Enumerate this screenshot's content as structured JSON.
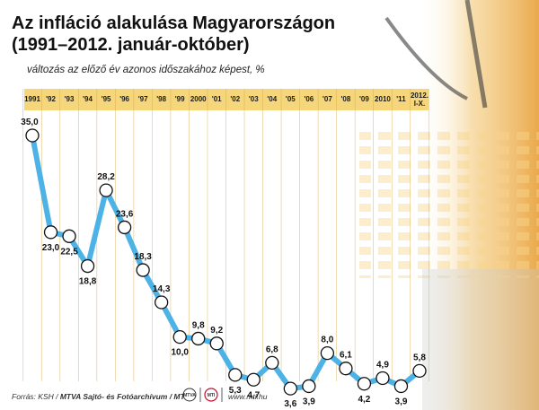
{
  "chart_data": {
    "type": "line",
    "title": [
      "Az infláció alakulása Magyarországon",
      "(1991–2012. január-október)"
    ],
    "subtitle": "változás az előző év azonos időszakához képest, %",
    "x_ticks": [
      "1991",
      "'92",
      "'93",
      "'94",
      "'95",
      "'96",
      "'97",
      "'98",
      "'99",
      "2000",
      "'01",
      "'02",
      "'03",
      "'04",
      "'05",
      "'06",
      "'07",
      "'08",
      "'09",
      "2010",
      "'11",
      "2012.\nI-X."
    ],
    "values": [
      35.0,
      23.0,
      22.5,
      18.8,
      28.2,
      23.6,
      18.3,
      14.3,
      10.0,
      9.8,
      9.2,
      5.3,
      4.7,
      6.8,
      3.6,
      3.9,
      8.0,
      6.1,
      4.2,
      4.9,
      3.9,
      5.8
    ],
    "value_labels": [
      "35,0",
      "23,0",
      "22,5",
      "18,8",
      "28,2",
      "23,6",
      "18,3",
      "14,3",
      "10,0",
      "9,8",
      "9,2",
      "5,3",
      "4,7",
      "6,8",
      "3,6",
      "3,9",
      "8,0",
      "6,1",
      "4,2",
      "4,9",
      "3,9",
      "5,8"
    ],
    "label_side": [
      "above",
      "below",
      "below",
      "below",
      "above",
      "above",
      "above",
      "above",
      "below",
      "above",
      "above",
      "below",
      "below",
      "above",
      "below",
      "below",
      "above",
      "above",
      "below",
      "above",
      "below",
      "above"
    ],
    "ylim": [
      0,
      37
    ],
    "grid": "vertical",
    "colors": {
      "line": "#4db3e6",
      "marker_fill": "#ffffff",
      "marker_stroke": "#111111",
      "tick_band": "#f5d67a",
      "grid": "#d9a94a"
    }
  },
  "footer": {
    "source_prefix": "Forrás: KSH / ",
    "source_bold": "MTVA Sajtó- és Fotóarchívum / MTI",
    "website": "www.mti.hu",
    "logo_left": "MTVA",
    "logo_right": "MTI"
  }
}
